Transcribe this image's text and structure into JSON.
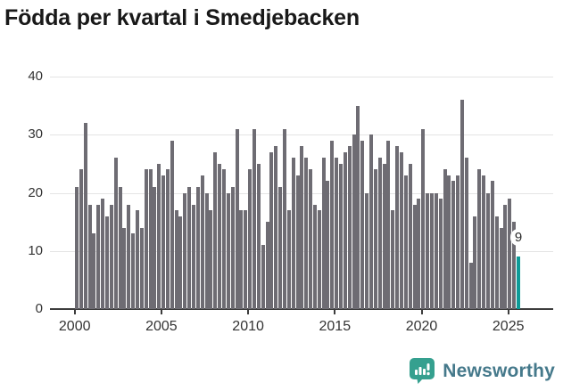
{
  "title": "Födda per kvartal i Smedjebacken",
  "footer": {
    "brand": "Newsworthy"
  },
  "chart_data": {
    "type": "bar",
    "title": "Födda per kvartal i Smedjebacken",
    "frequency": "quarterly",
    "xlabel": "",
    "ylabel": "",
    "ylim": [
      0,
      40
    ],
    "grid": true,
    "y_ticks": [
      0,
      10,
      20,
      30,
      40
    ],
    "x_tick_labels": [
      "2000",
      "2005",
      "2010",
      "2015",
      "2020",
      "2025"
    ],
    "bar_color": "#6e6c73",
    "highlight_color": "#0d9b98",
    "last_value_label": "9",
    "highlighted_last_value": 9,
    "categories": [
      "2000K1",
      "2000K2",
      "2000K3",
      "2000K4",
      "2001K1",
      "2001K2",
      "2001K3",
      "2001K4",
      "2002K1",
      "2002K2",
      "2002K3",
      "2002K4",
      "2003K1",
      "2003K2",
      "2003K3",
      "2003K4",
      "2004K1",
      "2004K2",
      "2004K3",
      "2004K4",
      "2005K1",
      "2005K2",
      "2005K3",
      "2005K4",
      "2006K1",
      "2006K2",
      "2006K3",
      "2006K4",
      "2007K1",
      "2007K2",
      "2007K3",
      "2007K4",
      "2008K1",
      "2008K2",
      "2008K3",
      "2008K4",
      "2009K1",
      "2009K2",
      "2009K3",
      "2009K4",
      "2010K1",
      "2010K2",
      "2010K3",
      "2010K4",
      "2011K1",
      "2011K2",
      "2011K3",
      "2011K4",
      "2012K1",
      "2012K2",
      "2012K3",
      "2012K4",
      "2013K1",
      "2013K2",
      "2013K3",
      "2013K4",
      "2014K1",
      "2014K2",
      "2014K3",
      "2014K4",
      "2015K1",
      "2015K2",
      "2015K3",
      "2015K4",
      "2016K1",
      "2016K2",
      "2016K3",
      "2016K4",
      "2017K1",
      "2017K2",
      "2017K3",
      "2017K4",
      "2018K1",
      "2018K2",
      "2018K3",
      "2018K4",
      "2019K1",
      "2019K2",
      "2019K3",
      "2019K4",
      "2020K1",
      "2020K2",
      "2020K3",
      "2020K4",
      "2021K1",
      "2021K2",
      "2021K3",
      "2021K4",
      "2022K1",
      "2022K2",
      "2022K3",
      "2022K4",
      "2023K1",
      "2023K2",
      "2023K3",
      "2023K4",
      "2024K1",
      "2024K2",
      "2024K3",
      "2024K4",
      "2025K1",
      "2025K2",
      "2025K3"
    ],
    "values": [
      21,
      24,
      32,
      18,
      13,
      18,
      19,
      16,
      18,
      26,
      21,
      14,
      18,
      13,
      17,
      14,
      24,
      24,
      21,
      25,
      23,
      24,
      29,
      17,
      16,
      20,
      21,
      18,
      21,
      23,
      20,
      17,
      27,
      25,
      24,
      20,
      21,
      31,
      17,
      17,
      24,
      31,
      25,
      11,
      15,
      27,
      28,
      21,
      31,
      17,
      26,
      23,
      28,
      26,
      24,
      18,
      17,
      26,
      22,
      29,
      26,
      25,
      27,
      28,
      30,
      35,
      29,
      20,
      30,
      24,
      26,
      25,
      29,
      17,
      28,
      27,
      23,
      25,
      18,
      19,
      31,
      20,
      20,
      20,
      19,
      24,
      23,
      22,
      23,
      36,
      26,
      8,
      16,
      24,
      23,
      20,
      22,
      16,
      14,
      18,
      19,
      15,
      9
    ]
  }
}
